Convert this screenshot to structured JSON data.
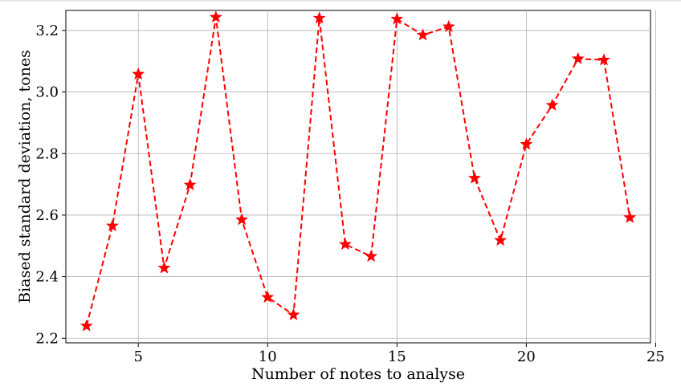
{
  "chart_data": {
    "type": "line",
    "title": "",
    "xlabel": "Number of notes to analyse",
    "ylabel": "Biased standard deviation, tones",
    "xlim": [
      2.2,
      24.8
    ],
    "ylim": [
      2.185,
      3.265
    ],
    "xticks": [
      5,
      10,
      15,
      20,
      25
    ],
    "xtick_labels": [
      "5",
      "10",
      "15",
      "20",
      "25"
    ],
    "yticks": [
      2.2,
      2.4,
      2.6,
      2.8,
      3.0,
      3.2
    ],
    "ytick_labels": [
      "2.2",
      "2.4",
      "2.6",
      "2.8",
      "3.0",
      "3.2"
    ],
    "grid": true,
    "legend": "none",
    "series": [
      {
        "color": "#ff0000",
        "line_style": "dashed",
        "marker": "star",
        "x": [
          3,
          4,
          5,
          6,
          7,
          8,
          9,
          10,
          11,
          12,
          13,
          14,
          15,
          16,
          17,
          18,
          19,
          20,
          21,
          22,
          23,
          24
        ],
        "y": [
          2.24,
          2.565,
          3.058,
          2.428,
          2.698,
          3.243,
          2.585,
          2.333,
          2.276,
          3.24,
          2.505,
          2.466,
          3.237,
          3.185,
          3.212,
          2.72,
          2.518,
          2.83,
          2.957,
          3.108,
          3.104,
          2.592
        ]
      }
    ]
  }
}
